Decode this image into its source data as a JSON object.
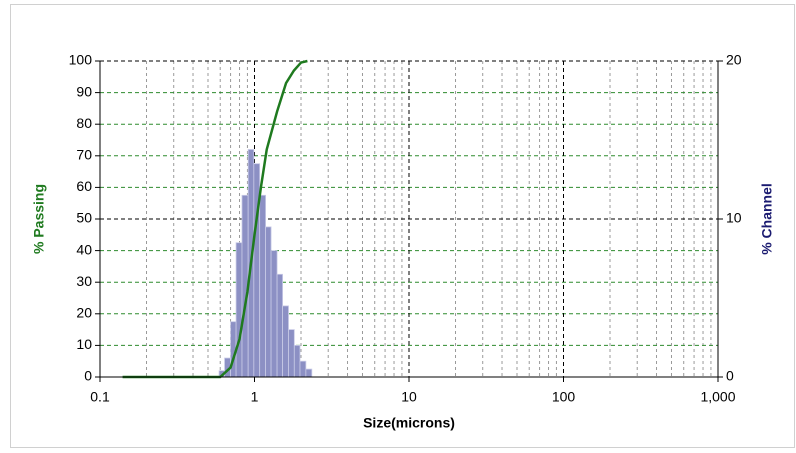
{
  "chart_data": {
    "type": "histogram",
    "xlabel": "Size(microns)",
    "ylabel": "% Passing",
    "y2label": "% Channel",
    "xscale": "log",
    "xlim": [
      0.1,
      1000
    ],
    "xticks": [
      0.1,
      1,
      10,
      100,
      {
        "value": 1000,
        "label": "1,000"
      }
    ],
    "xminor": [
      0.2,
      0.3,
      0.4,
      0.5,
      0.6,
      0.7,
      0.8,
      0.9,
      2,
      3,
      4,
      5,
      6,
      7,
      8,
      9,
      20,
      30,
      40,
      50,
      60,
      70,
      80,
      90,
      200,
      300,
      400,
      500,
      600,
      700,
      800,
      900
    ],
    "ylim": [
      0,
      100
    ],
    "yticks": [
      0,
      10,
      20,
      30,
      40,
      50,
      60,
      70,
      80,
      90,
      100
    ],
    "y2lim": [
      0,
      20
    ],
    "y2ticks": [
      0,
      10,
      20
    ],
    "grid": true,
    "bars": {
      "axis": "y2",
      "color": "#8c90c4",
      "bins": [
        0.59,
        0.64,
        0.7,
        0.76,
        0.83,
        0.91,
        0.99,
        1.08,
        1.18,
        1.28,
        1.4,
        1.52,
        1.66,
        1.81,
        1.97,
        2.15,
        2.35
      ],
      "values": [
        0.4,
        1.2,
        3.5,
        8.5,
        11.5,
        14.4,
        13.5,
        11.5,
        9.5,
        8,
        6.5,
        4.5,
        3,
        2,
        1,
        0.5
      ]
    },
    "curve": {
      "color": "#1f7a1f",
      "x": [
        0.14,
        0.6,
        0.7,
        0.8,
        0.9,
        1.0,
        1.1,
        1.2,
        1.4,
        1.6,
        1.8,
        2.0,
        2.2
      ],
      "values": [
        0,
        0,
        3,
        12,
        27,
        45,
        60,
        72,
        84,
        93,
        97,
        99.5,
        100
      ]
    }
  }
}
